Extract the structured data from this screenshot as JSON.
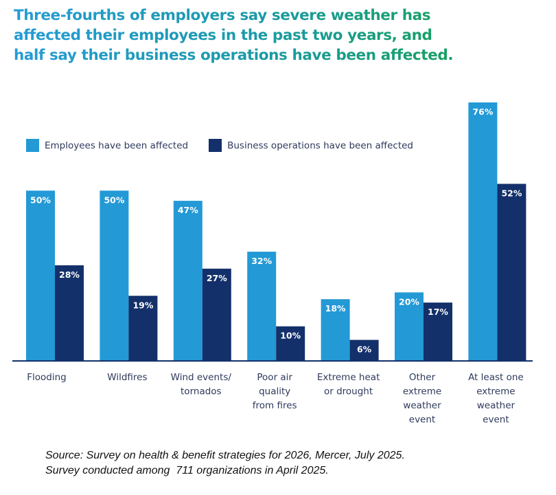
{
  "title_lines": [
    "Three-fourths of employers say severe weather has",
    "affected their employees in the past two years, and",
    "half say their business operations have been affected."
  ],
  "colors": {
    "employees": "#2399d6",
    "business": "#13306a",
    "baseline": "#13306a"
  },
  "chart_data": {
    "type": "bar",
    "title": "Three-fourths of employers say severe weather has affected their employees in the past two years, and half say their business operations have been affected.",
    "xlabel": "",
    "ylabel": "",
    "ylim": [
      0,
      76
    ],
    "grid": false,
    "legend_position": "top-left",
    "categories": [
      [
        "Flooding"
      ],
      [
        "Wildfires"
      ],
      [
        "Wind events/",
        "tornados"
      ],
      [
        "Poor air",
        "quality",
        "from fires"
      ],
      [
        "Extreme heat",
        "or drought"
      ],
      [
        "Other",
        "extreme",
        "weather",
        "event"
      ],
      [
        "At least one",
        "extreme",
        "weather",
        "event"
      ]
    ],
    "series": [
      {
        "name": "Employees have been affected",
        "values": [
          50,
          50,
          47,
          32,
          18,
          20,
          76
        ],
        "labels": [
          "50%",
          "50%",
          "47%",
          "32%",
          "18%",
          "20%",
          "76%"
        ]
      },
      {
        "name": "Business operations have been affected",
        "values": [
          28,
          19,
          27,
          10,
          6,
          17,
          52
        ],
        "labels": [
          "28%",
          "19%",
          "27%",
          "10%",
          "6%",
          "17%",
          "52%"
        ]
      }
    ]
  },
  "source_lines": [
    "Source: Survey on health & benefit strategies for 2026, Mercer, July 2025.",
    "Survey conducted among  711 organizations in April 2025."
  ]
}
